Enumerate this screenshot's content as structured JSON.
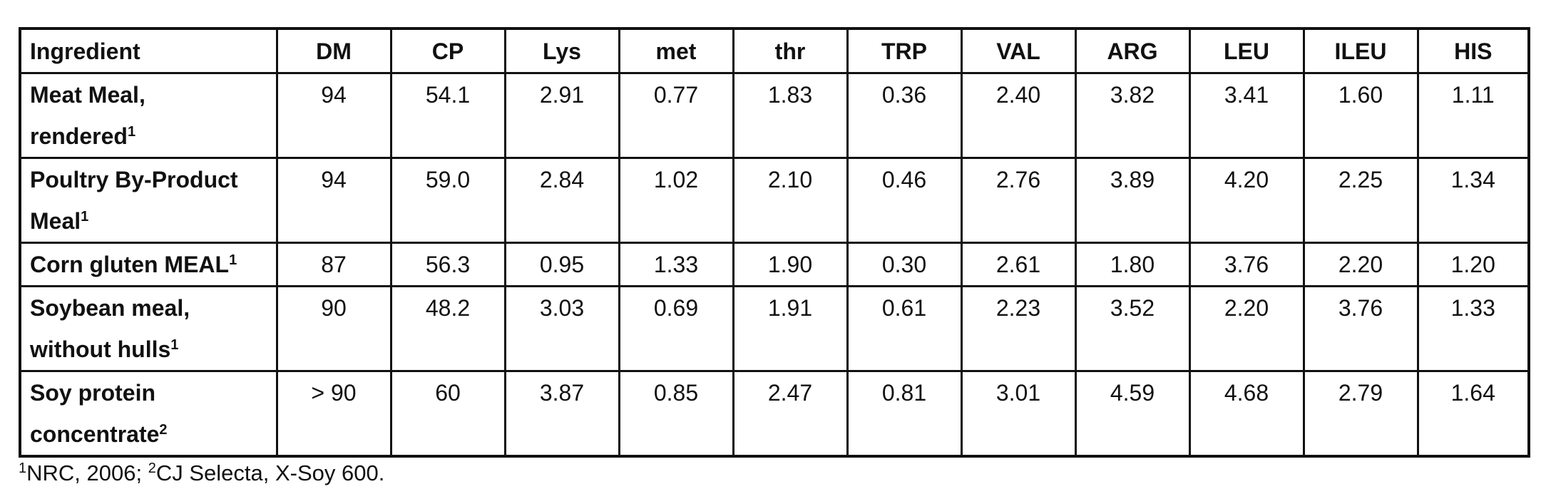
{
  "table": {
    "headers": [
      "Ingredient",
      "DM",
      "CP",
      "Lys",
      "met",
      "thr",
      "TRP",
      "VAL",
      "ARG",
      "LEU",
      "ILEU",
      "HIS"
    ],
    "rows": [
      {
        "name_lines": [
          "Meat Meal,",
          "rendered"
        ],
        "sup": "1",
        "values": [
          "94",
          "54.1",
          "2.91",
          "0.77",
          "1.83",
          "0.36",
          "2.40",
          "3.82",
          "3.41",
          "1.60",
          "1.11"
        ]
      },
      {
        "name_lines": [
          "Poultry By-Product",
          "Meal"
        ],
        "sup": "1",
        "values": [
          "94",
          "59.0",
          "2.84",
          "1.02",
          "2.10",
          "0.46",
          "2.76",
          "3.89",
          "4.20",
          "2.25",
          "1.34"
        ]
      },
      {
        "name_lines": [
          "Corn gluten MEAL"
        ],
        "sup": "1",
        "values": [
          "87",
          "56.3",
          "0.95",
          "1.33",
          "1.90",
          "0.30",
          "2.61",
          "1.80",
          "3.76",
          "2.20",
          "1.20"
        ]
      },
      {
        "name_lines": [
          "Soybean meal,",
          "without hulls"
        ],
        "sup": "1",
        "values": [
          "90",
          "48.2",
          "3.03",
          "0.69",
          "1.91",
          "0.61",
          "2.23",
          "3.52",
          "2.20",
          "3.76",
          "1.33"
        ]
      },
      {
        "name_lines": [
          "Soy protein",
          "concentrate"
        ],
        "sup": "2",
        "values": [
          "> 90",
          "60",
          "3.87",
          "0.85",
          "2.47",
          "0.81",
          "3.01",
          "4.59",
          "4.68",
          "2.79",
          "1.64"
        ]
      }
    ]
  },
  "footnote": {
    "sup1": "1",
    "text1": "NRC, 2006; ",
    "sup2": "2",
    "text2": "CJ Selecta, X-Soy 600."
  }
}
